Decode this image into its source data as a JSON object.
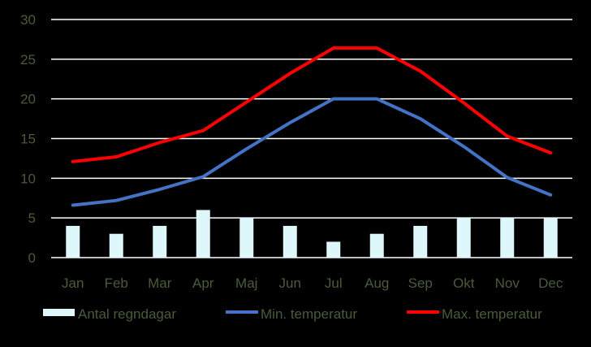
{
  "chart_data": {
    "type": "bar+line",
    "categories": [
      "Jan",
      "Feb",
      "Mar",
      "Apr",
      "Maj",
      "Jun",
      "Jul",
      "Aug",
      "Sep",
      "Okt",
      "Nov",
      "Dec"
    ],
    "ylim": [
      0,
      30
    ],
    "yticks": [
      "0",
      "5",
      "10",
      "15",
      "20",
      "25",
      "30"
    ],
    "grid": true,
    "legend_position": "bottom",
    "series": [
      {
        "name": "Antal regndagar",
        "kind": "bar",
        "color": "#ddf7fb",
        "values": [
          4,
          3,
          4,
          6,
          5,
          4,
          2,
          3,
          4,
          5,
          5,
          5
        ]
      },
      {
        "name": "Min. temperatur",
        "kind": "line",
        "color": "#4472c4",
        "values": [
          6.6,
          7.2,
          8.6,
          10.2,
          13.7,
          17.0,
          20.0,
          20.0,
          17.5,
          14.0,
          10.1,
          7.9
        ]
      },
      {
        "name": "Max. temperatur",
        "kind": "line",
        "color": "#ff0000",
        "values": [
          12.1,
          12.7,
          14.5,
          16.0,
          19.6,
          23.2,
          26.4,
          26.4,
          23.5,
          19.5,
          15.3,
          13.2
        ]
      }
    ]
  }
}
